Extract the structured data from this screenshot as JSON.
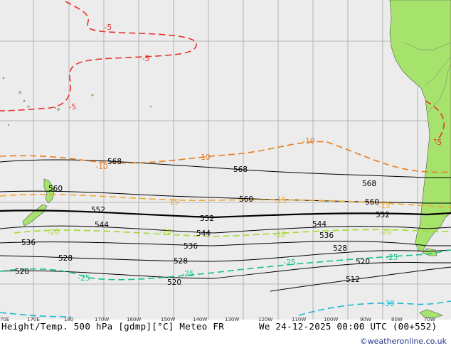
{
  "map": {
    "background_color": "#ececec",
    "land_color": "#a6e36c",
    "grid_color": "#a4a4a4",
    "colors": {
      "geopotential": "#000000",
      "t_minus5": "#e8332a",
      "t_minus10": "#e67e22",
      "t_minus15": "#f0a830",
      "t_minus20": "#a8d830",
      "t_minus25": "#18c088",
      "t_minus30": "#18b8d0"
    },
    "contour_labels": {
      "z568_a": "568",
      "z568_b": "568",
      "z568_c": "568",
      "z560_a": "560",
      "z560_b": "560",
      "z560_c": "560",
      "z552_a": "552",
      "z552_b": "552",
      "z552_c": "552",
      "z544_a": "544",
      "z544_b": "544",
      "z544_c": "544",
      "z536_a": "536",
      "z536_b": "536",
      "z536_c": "536",
      "z528_a": "528",
      "z528_b": "528",
      "z528_c": "528",
      "z520_a": "520",
      "z520_b": "520",
      "z520_c": "520",
      "z512": "512",
      "t5_a": "-5",
      "t5_b": "-5",
      "t5_c": "-5",
      "t5_d": "-5",
      "t10_a": "-10",
      "t10_b": "-10",
      "t10_c": "-10",
      "t15_a": "-15",
      "t15_b": "-15",
      "t15_c": "-15",
      "t20_a": "-20",
      "t20_b": "-20",
      "t20_c": "-20",
      "t20_d": "-20",
      "t25_a": "-25",
      "t25_b": "-25",
      "t25_c": "-25",
      "t25_d": "-25",
      "t30": "-30"
    },
    "lon_labels": [
      "70E",
      "170E",
      "180",
      "170W",
      "160W",
      "150W",
      "140W",
      "130W",
      "120W",
      "110W",
      "100W",
      "90W",
      "80W",
      "70W"
    ]
  },
  "footer": {
    "title": "Height/Temp. 500 hPa [gdmp][°C] Meteo FR",
    "datetime": "We 24-12-2025 00:00 UTC (00+552)",
    "credit": "©weatheronline.co.uk"
  }
}
